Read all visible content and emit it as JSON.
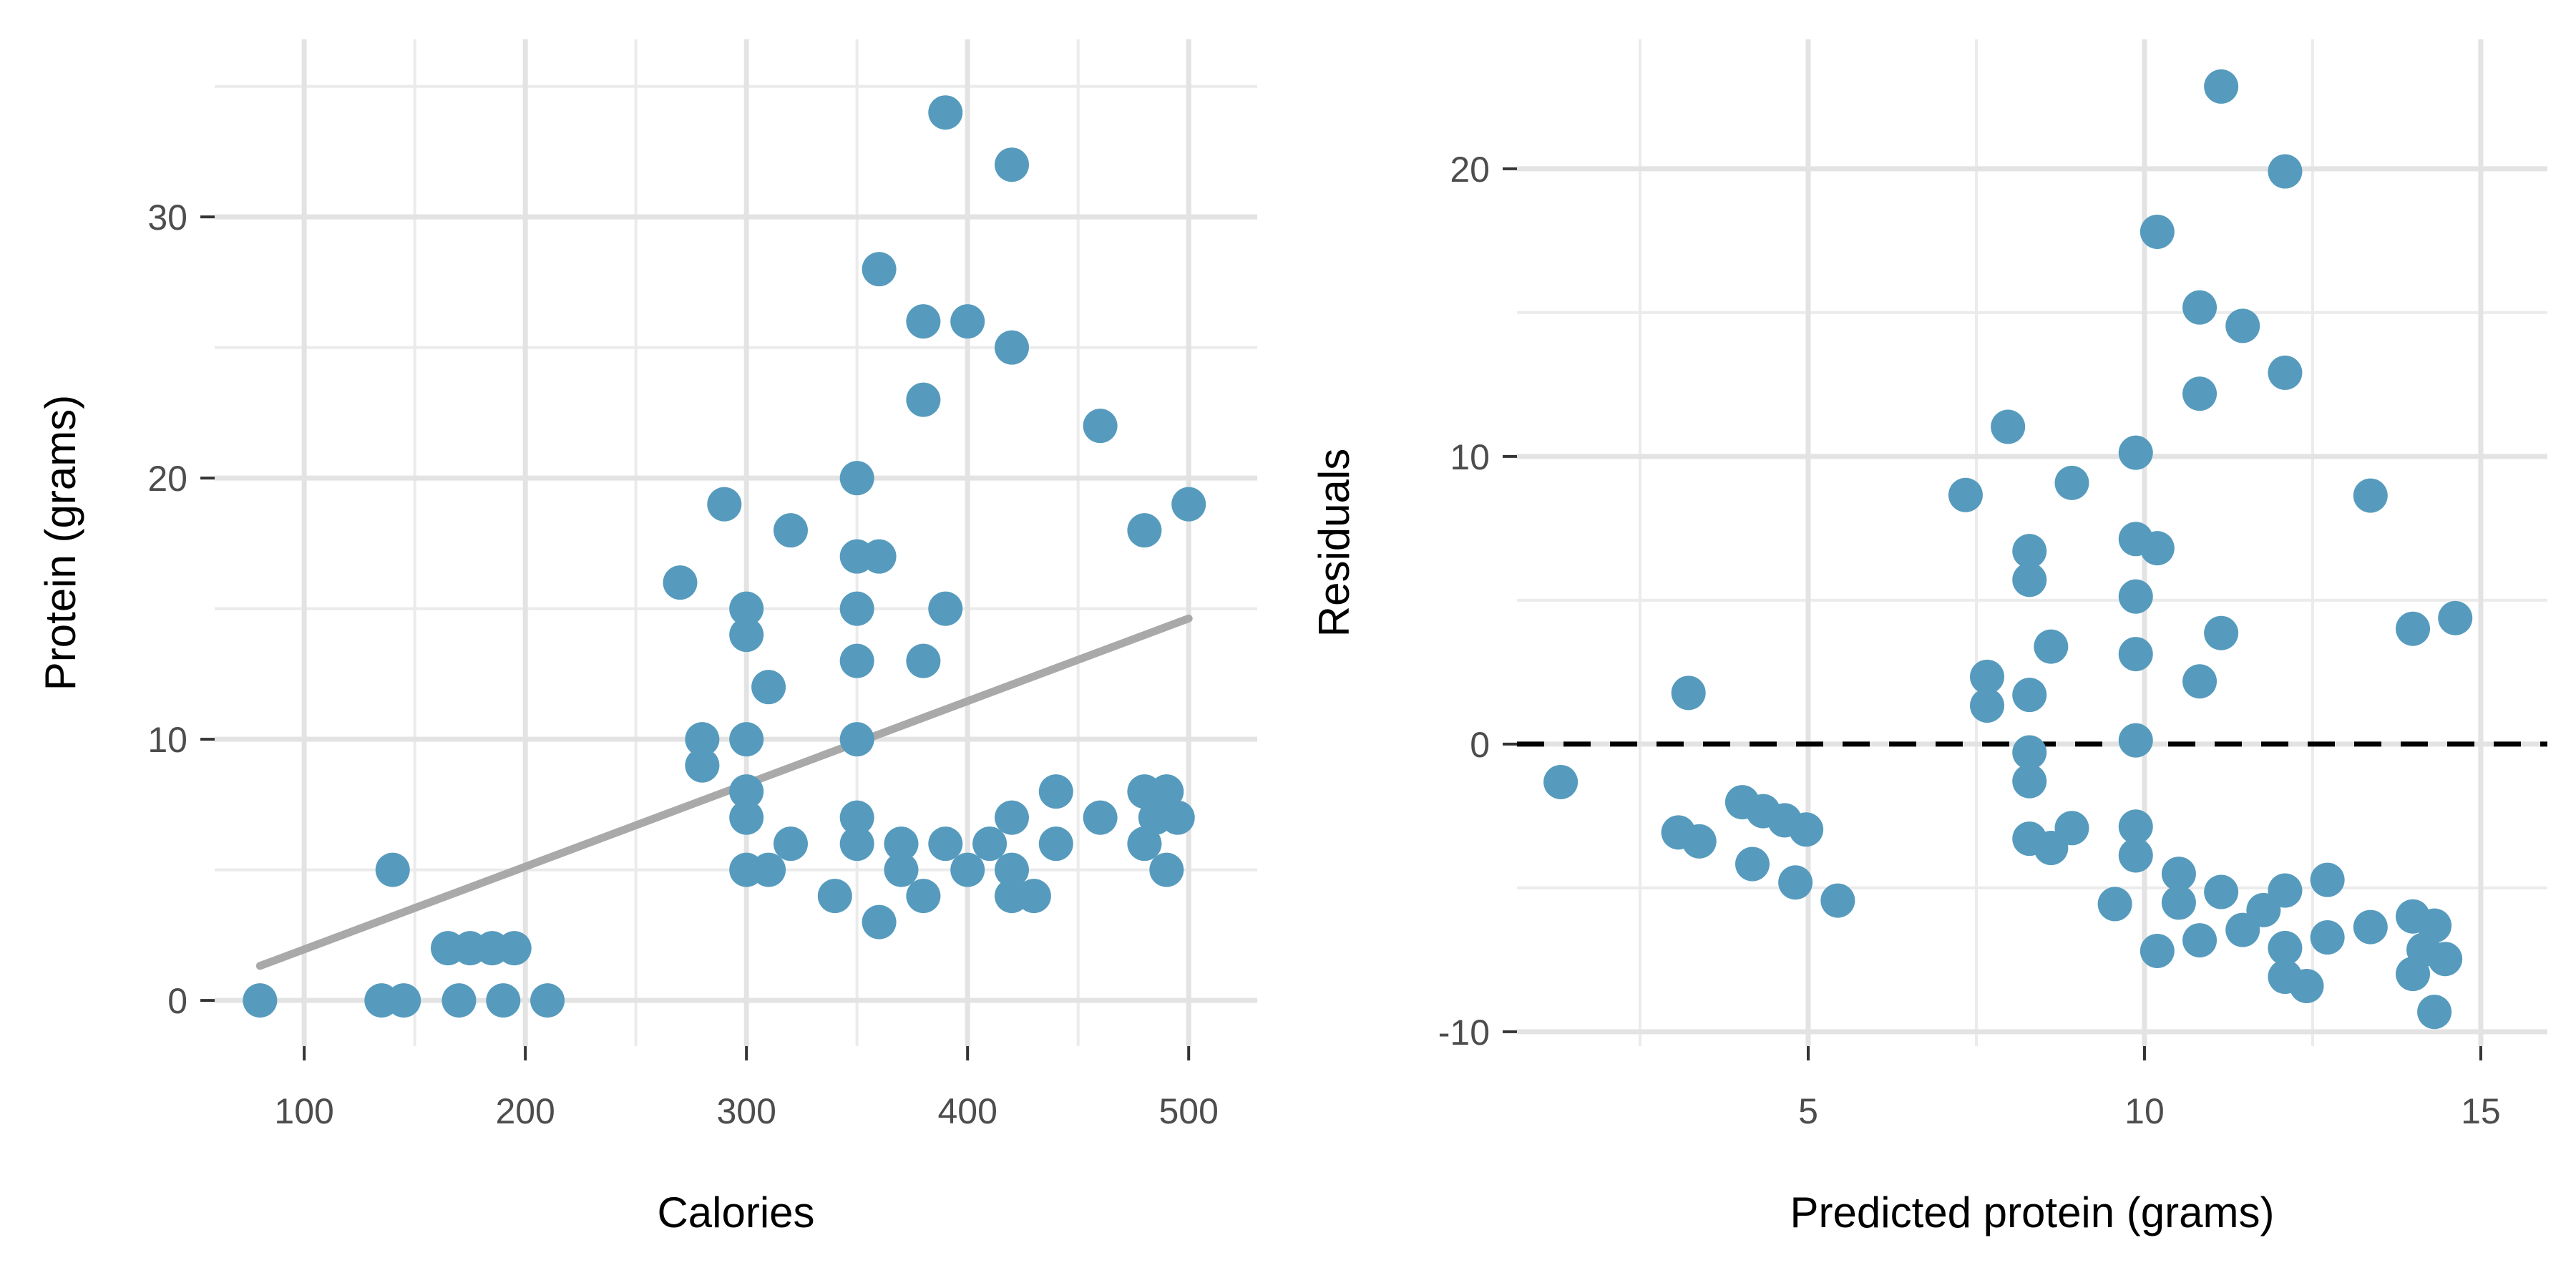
{
  "figure": {
    "background": "#FFFFFF",
    "point_color": "#569BBD",
    "tick_label_color": "#4D4D4D",
    "axis_title_color": "#000000",
    "grid_major_color": "#E3E3E3",
    "grid_minor_color": "#EBEBEB",
    "tick_mark_color": "#333333",
    "trend_line_color": "#A9A9A9",
    "zero_line_color": "#000000"
  },
  "chart_data": [
    {
      "type": "scatter",
      "panel": "left",
      "title": "",
      "xlabel": "Calories",
      "ylabel": "Protein (grams)",
      "xlim": [
        59.5,
        531
      ],
      "ylim": [
        -1.75,
        36.8
      ],
      "x_ticks": [
        100,
        200,
        300,
        400,
        500
      ],
      "x_minor_ticks": [
        150,
        250,
        350,
        450
      ],
      "y_ticks": [
        0,
        10,
        20,
        30
      ],
      "y_minor_ticks": [
        5,
        15,
        25,
        35
      ],
      "grid": true,
      "legend": "none",
      "point_color": "#569BBD",
      "points": [
        [
          80,
          0
        ],
        [
          135,
          0
        ],
        [
          145,
          0
        ],
        [
          170,
          0
        ],
        [
          190,
          0
        ],
        [
          210,
          0
        ],
        [
          140,
          5
        ],
        [
          165,
          2
        ],
        [
          175,
          2
        ],
        [
          185,
          2
        ],
        [
          195,
          2
        ],
        [
          270,
          16
        ],
        [
          280,
          10
        ],
        [
          280,
          9
        ],
        [
          290,
          19
        ],
        [
          300,
          15
        ],
        [
          300,
          14
        ],
        [
          300,
          10
        ],
        [
          300,
          8
        ],
        [
          300,
          7
        ],
        [
          300,
          5
        ],
        [
          310,
          12
        ],
        [
          310,
          5
        ],
        [
          320,
          18
        ],
        [
          320,
          6
        ],
        [
          340,
          4
        ],
        [
          350,
          20
        ],
        [
          350,
          17
        ],
        [
          350,
          15
        ],
        [
          350,
          13
        ],
        [
          350,
          10
        ],
        [
          350,
          7
        ],
        [
          350,
          6
        ],
        [
          360,
          28
        ],
        [
          360,
          17
        ],
        [
          360,
          3
        ],
        [
          370,
          6
        ],
        [
          370,
          5
        ],
        [
          380,
          26
        ],
        [
          380,
          23
        ],
        [
          380,
          13
        ],
        [
          380,
          4
        ],
        [
          390,
          34
        ],
        [
          390,
          15
        ],
        [
          390,
          6
        ],
        [
          400,
          26
        ],
        [
          400,
          5
        ],
        [
          410,
          6
        ],
        [
          420,
          32
        ],
        [
          420,
          25
        ],
        [
          420,
          7
        ],
        [
          420,
          5
        ],
        [
          420,
          4
        ],
        [
          430,
          4
        ],
        [
          440,
          8
        ],
        [
          440,
          6
        ],
        [
          460,
          22
        ],
        [
          460,
          7
        ],
        [
          480,
          18
        ],
        [
          480,
          8
        ],
        [
          480,
          6
        ],
        [
          485,
          7
        ],
        [
          490,
          8
        ],
        [
          490,
          5
        ],
        [
          495,
          7
        ],
        [
          500,
          19
        ]
      ],
      "trend_line": {
        "style": "solid",
        "color": "#A9A9A9",
        "slope": 0.03167,
        "intercept": -1.21,
        "x_start": 80,
        "x_end": 500
      }
    },
    {
      "type": "scatter",
      "panel": "right",
      "title": "",
      "xlabel": "Predicted protein (grams)",
      "ylabel": "Residuals",
      "xlim": [
        0.67,
        15.99
      ],
      "ylim": [
        -10.5,
        24.5
      ],
      "x_ticks": [
        5,
        10,
        15
      ],
      "x_minor_ticks": [
        2.5,
        7.5,
        12.5
      ],
      "y_ticks": [
        -10,
        0,
        10,
        20
      ],
      "y_minor_ticks": [
        -5,
        5,
        15
      ],
      "grid": true,
      "legend": "none",
      "point_color": "#569BBD",
      "points": [
        [
          1.32,
          -1.32
        ],
        [
          3.07,
          -3.07
        ],
        [
          3.38,
          -3.38
        ],
        [
          4.17,
          -4.17
        ],
        [
          4.81,
          -4.81
        ],
        [
          5.44,
          -5.44
        ],
        [
          3.22,
          1.78
        ],
        [
          4.02,
          -2.02
        ],
        [
          4.33,
          -2.33
        ],
        [
          4.65,
          -2.65
        ],
        [
          4.97,
          -2.97
        ],
        [
          7.34,
          8.66
        ],
        [
          7.66,
          2.34
        ],
        [
          7.66,
          1.34
        ],
        [
          7.97,
          11.03
        ],
        [
          8.29,
          6.71
        ],
        [
          8.29,
          5.71
        ],
        [
          8.29,
          1.71
        ],
        [
          8.29,
          -0.29
        ],
        [
          8.29,
          -1.29
        ],
        [
          8.29,
          -3.29
        ],
        [
          8.61,
          3.39
        ],
        [
          8.61,
          -3.61
        ],
        [
          8.92,
          9.08
        ],
        [
          8.92,
          -2.92
        ],
        [
          9.56,
          -5.56
        ],
        [
          9.87,
          10.13
        ],
        [
          9.87,
          7.13
        ],
        [
          9.87,
          5.13
        ],
        [
          9.87,
          3.13
        ],
        [
          9.87,
          0.13
        ],
        [
          9.87,
          -2.87
        ],
        [
          9.87,
          -3.87
        ],
        [
          10.19,
          17.81
        ],
        [
          10.19,
          6.81
        ],
        [
          10.19,
          -7.19
        ],
        [
          10.51,
          -4.51
        ],
        [
          10.51,
          -5.51
        ],
        [
          10.82,
          15.18
        ],
        [
          10.82,
          12.18
        ],
        [
          10.82,
          2.18
        ],
        [
          10.82,
          -6.82
        ],
        [
          11.14,
          22.86
        ],
        [
          11.14,
          3.86
        ],
        [
          11.14,
          -5.14
        ],
        [
          11.46,
          14.54
        ],
        [
          11.46,
          -6.46
        ],
        [
          11.77,
          -5.77
        ],
        [
          12.09,
          19.91
        ],
        [
          12.09,
          12.91
        ],
        [
          12.09,
          -5.09
        ],
        [
          12.09,
          -7.09
        ],
        [
          12.09,
          -8.09
        ],
        [
          12.41,
          -8.41
        ],
        [
          12.72,
          -4.72
        ],
        [
          12.72,
          -6.72
        ],
        [
          13.36,
          8.64
        ],
        [
          13.36,
          -6.36
        ],
        [
          13.99,
          4.01
        ],
        [
          13.99,
          -5.99
        ],
        [
          13.99,
          -7.99
        ],
        [
          14.15,
          -7.15
        ],
        [
          14.31,
          -6.31
        ],
        [
          14.31,
          -9.31
        ],
        [
          14.47,
          -7.47
        ],
        [
          14.62,
          4.38
        ]
      ],
      "zero_line": {
        "style": "dashed",
        "color": "#000000",
        "y": 0
      }
    }
  ]
}
